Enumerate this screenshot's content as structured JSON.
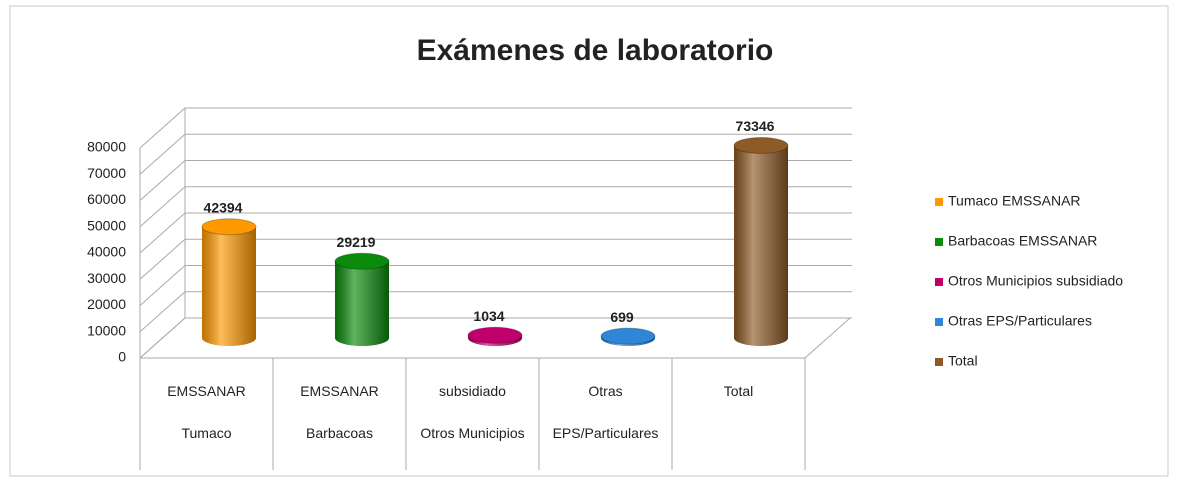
{
  "chart_data": {
    "type": "bar3d",
    "title": "Exámenes de laboratorio",
    "categories": [
      [
        "EMSSANAR",
        "Tumaco"
      ],
      [
        "EMSSANAR",
        "Barbacoas"
      ],
      [
        "subsidiado",
        "Otros Municipios"
      ],
      [
        "Otras",
        "EPS/Particulares"
      ],
      [
        "Total"
      ]
    ],
    "series": [
      {
        "name": "Tumaco EMSSANAR",
        "color": "#ff9900",
        "values": [
          42394,
          null,
          null,
          null,
          null
        ]
      },
      {
        "name": "Barbacoas EMSSANAR",
        "color": "#0b8a0b",
        "values": [
          null,
          29219,
          null,
          null,
          null
        ]
      },
      {
        "name": "Otros Municipios subsidiado",
        "color": "#c0006a",
        "values": [
          null,
          null,
          1034,
          null,
          null
        ]
      },
      {
        "name": "Otras EPS/Particulares",
        "color": "#2f86d8",
        "values": [
          null,
          null,
          null,
          699,
          null
        ]
      },
      {
        "name": "Total",
        "color": "#8e5a26",
        "values": [
          null,
          null,
          null,
          null,
          73346
        ]
      }
    ],
    "ylim": [
      0,
      80000
    ],
    "yticks": [
      0,
      10000,
      20000,
      30000,
      40000,
      50000,
      60000,
      70000,
      80000
    ],
    "grid": true
  }
}
